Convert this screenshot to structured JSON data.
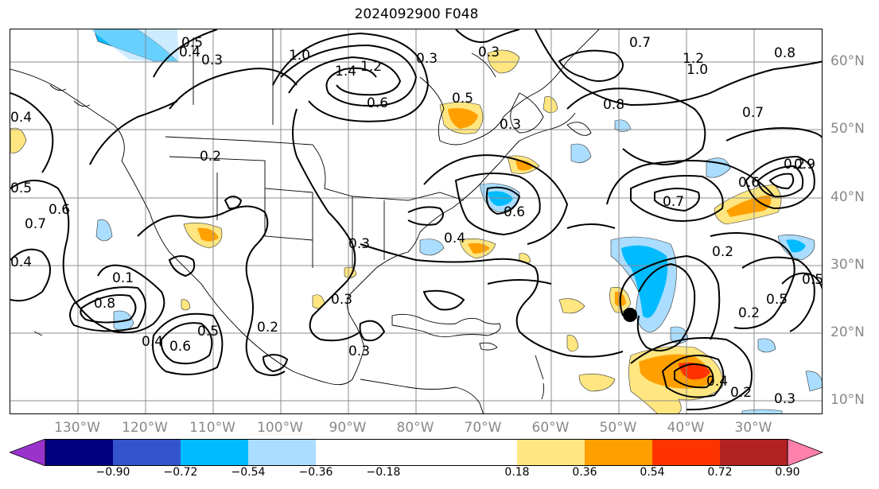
{
  "title": "2024092900 F048",
  "lon_labels": [
    "130°W",
    "120°W",
    "110°W",
    "100°W",
    "90°W",
    "80°W",
    "70°W",
    "60°W",
    "50°W",
    "40°W",
    "30°W"
  ],
  "lat_labels": [
    "60°N",
    "50°N",
    "40°N",
    "30°N",
    "20°N",
    "10°N"
  ],
  "colorbar": {
    "ticks": [
      "−0.90",
      "−0.72",
      "−0.54",
      "−0.36",
      "−0.18",
      "0.18",
      "0.36",
      "0.54",
      "0.72",
      "0.90"
    ],
    "colors": [
      "#9933cc",
      "#000080",
      "#3355cc",
      "#00bbff",
      "#aaddff",
      "#ffffff",
      "#ffe680",
      "#ffa000",
      "#ff3300",
      "#b22222",
      "#ff80aa"
    ]
  },
  "contour_labels": [
    "0.5",
    "0.4",
    "0.3",
    "1.0",
    "1.2",
    "1.4",
    "0.6",
    "0.5",
    "0.3",
    "0.7",
    "1.2",
    "1.0",
    "0.8",
    "0.8",
    "0.3",
    "0.3",
    "0.7",
    "0.2",
    "0.5",
    "0.6",
    "0.7",
    "0.2",
    "0.6",
    "0.6",
    "0.7",
    "0.4",
    "0.8",
    "0.2",
    "0.3",
    "0.2",
    "0.5",
    "0.3",
    "0.3",
    "0.4",
    "0.6",
    "0.4",
    "0.5",
    "0.2",
    "0.1",
    "0.4",
    "0.2",
    "0.5",
    "0.4",
    "0.3",
    "0.9"
  ],
  "marker": "storm-center"
}
